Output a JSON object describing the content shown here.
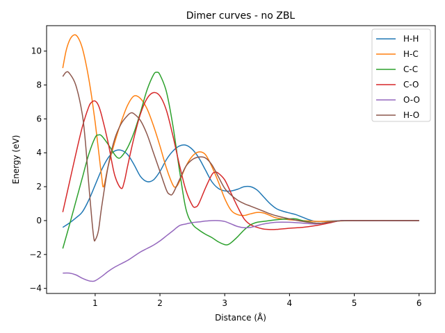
{
  "chart_data": {
    "type": "line",
    "title": "Dimer curves - no ZBL",
    "xlabel": "Distance (Å)",
    "ylabel": "Energy (eV)",
    "xlim": [
      0.25,
      6.25
    ],
    "ylim": [
      -4.3,
      11.5
    ],
    "xticks": [
      1,
      2,
      3,
      4,
      5,
      6
    ],
    "yticks": [
      -4,
      -2,
      0,
      2,
      4,
      6,
      8,
      10
    ],
    "legend_position": "top-right",
    "grid": false,
    "series": [
      {
        "name": "H-H",
        "color": "#1f77b4",
        "points": [
          [
            0.5,
            -0.4
          ],
          [
            0.6,
            -0.15
          ],
          [
            0.7,
            0.15
          ],
          [
            0.8,
            0.5
          ],
          [
            0.9,
            1.2
          ],
          [
            1.0,
            2.1
          ],
          [
            1.1,
            3.0
          ],
          [
            1.2,
            3.7
          ],
          [
            1.3,
            4.1
          ],
          [
            1.4,
            4.15
          ],
          [
            1.5,
            3.9
          ],
          [
            1.6,
            3.3
          ],
          [
            1.7,
            2.6
          ],
          [
            1.8,
            2.3
          ],
          [
            1.9,
            2.4
          ],
          [
            2.0,
            2.9
          ],
          [
            2.1,
            3.6
          ],
          [
            2.2,
            4.1
          ],
          [
            2.3,
            4.4
          ],
          [
            2.4,
            4.45
          ],
          [
            2.5,
            4.2
          ],
          [
            2.6,
            3.7
          ],
          [
            2.7,
            3.0
          ],
          [
            2.8,
            2.3
          ],
          [
            2.9,
            1.9
          ],
          [
            3.0,
            1.75
          ],
          [
            3.1,
            1.75
          ],
          [
            3.2,
            1.85
          ],
          [
            3.3,
            2.0
          ],
          [
            3.4,
            2.0
          ],
          [
            3.5,
            1.8
          ],
          [
            3.6,
            1.4
          ],
          [
            3.7,
            1.0
          ],
          [
            3.8,
            0.7
          ],
          [
            3.9,
            0.55
          ],
          [
            4.0,
            0.45
          ],
          [
            4.1,
            0.35
          ],
          [
            4.2,
            0.2
          ],
          [
            4.3,
            0.05
          ],
          [
            4.4,
            -0.05
          ],
          [
            4.5,
            -0.05
          ],
          [
            4.6,
            -0.03
          ],
          [
            4.8,
            0.0
          ],
          [
            5.0,
            0.0
          ],
          [
            6.0,
            0.0
          ]
        ]
      },
      {
        "name": "H-C",
        "color": "#ff7f0e",
        "points": [
          [
            0.5,
            9.0
          ],
          [
            0.55,
            10.0
          ],
          [
            0.6,
            10.6
          ],
          [
            0.65,
            10.9
          ],
          [
            0.7,
            10.95
          ],
          [
            0.75,
            10.7
          ],
          [
            0.8,
            10.2
          ],
          [
            0.85,
            9.4
          ],
          [
            0.9,
            8.4
          ],
          [
            0.95,
            7.2
          ],
          [
            1.0,
            5.8
          ],
          [
            1.05,
            4.2
          ],
          [
            1.1,
            2.6
          ],
          [
            1.13,
            2.0
          ],
          [
            1.2,
            3.2
          ],
          [
            1.3,
            4.6
          ],
          [
            1.4,
            5.8
          ],
          [
            1.5,
            6.8
          ],
          [
            1.6,
            7.35
          ],
          [
            1.7,
            7.2
          ],
          [
            1.8,
            6.6
          ],
          [
            1.9,
            5.6
          ],
          [
            2.0,
            4.4
          ],
          [
            2.1,
            3.1
          ],
          [
            2.2,
            2.1
          ],
          [
            2.25,
            2.0
          ],
          [
            2.3,
            2.3
          ],
          [
            2.4,
            3.2
          ],
          [
            2.5,
            3.8
          ],
          [
            2.6,
            4.05
          ],
          [
            2.7,
            3.9
          ],
          [
            2.8,
            3.2
          ],
          [
            2.9,
            2.3
          ],
          [
            3.0,
            1.3
          ],
          [
            3.1,
            0.6
          ],
          [
            3.2,
            0.35
          ],
          [
            3.3,
            0.3
          ],
          [
            3.4,
            0.4
          ],
          [
            3.5,
            0.48
          ],
          [
            3.6,
            0.45
          ],
          [
            3.7,
            0.3
          ],
          [
            3.8,
            0.15
          ],
          [
            4.0,
            0.05
          ],
          [
            4.2,
            0.0
          ],
          [
            4.5,
            -0.05
          ],
          [
            5.0,
            0.0
          ],
          [
            6.0,
            0.0
          ]
        ]
      },
      {
        "name": "C-C",
        "color": "#2ca02c",
        "points": [
          [
            0.5,
            -1.65
          ],
          [
            0.6,
            -0.3
          ],
          [
            0.7,
            1.1
          ],
          [
            0.8,
            2.5
          ],
          [
            0.9,
            3.9
          ],
          [
            1.0,
            4.9
          ],
          [
            1.05,
            5.05
          ],
          [
            1.1,
            5.0
          ],
          [
            1.2,
            4.5
          ],
          [
            1.3,
            3.9
          ],
          [
            1.35,
            3.7
          ],
          [
            1.4,
            3.75
          ],
          [
            1.5,
            4.3
          ],
          [
            1.6,
            5.2
          ],
          [
            1.7,
            6.4
          ],
          [
            1.8,
            7.7
          ],
          [
            1.9,
            8.6
          ],
          [
            1.95,
            8.75
          ],
          [
            2.0,
            8.6
          ],
          [
            2.1,
            7.6
          ],
          [
            2.2,
            5.6
          ],
          [
            2.3,
            3.0
          ],
          [
            2.4,
            0.7
          ],
          [
            2.5,
            -0.2
          ],
          [
            2.6,
            -0.55
          ],
          [
            2.7,
            -0.8
          ],
          [
            2.8,
            -1.0
          ],
          [
            2.9,
            -1.25
          ],
          [
            3.0,
            -1.42
          ],
          [
            3.05,
            -1.42
          ],
          [
            3.1,
            -1.3
          ],
          [
            3.2,
            -0.95
          ],
          [
            3.3,
            -0.55
          ],
          [
            3.4,
            -0.25
          ],
          [
            3.5,
            -0.1
          ],
          [
            3.6,
            -0.05
          ],
          [
            3.8,
            0.05
          ],
          [
            4.0,
            0.1
          ],
          [
            4.1,
            0.1
          ],
          [
            4.2,
            0.0
          ],
          [
            4.4,
            -0.15
          ],
          [
            4.5,
            -0.15
          ],
          [
            4.7,
            -0.05
          ],
          [
            4.9,
            0.0
          ],
          [
            6.0,
            0.0
          ]
        ]
      },
      {
        "name": "C-O",
        "color": "#d62728",
        "points": [
          [
            0.5,
            0.5
          ],
          [
            0.6,
            2.2
          ],
          [
            0.7,
            3.9
          ],
          [
            0.8,
            5.5
          ],
          [
            0.9,
            6.7
          ],
          [
            0.95,
            7.0
          ],
          [
            1.0,
            7.05
          ],
          [
            1.05,
            6.8
          ],
          [
            1.1,
            6.2
          ],
          [
            1.2,
            4.6
          ],
          [
            1.3,
            2.7
          ],
          [
            1.4,
            1.9
          ],
          [
            1.45,
            2.3
          ],
          [
            1.5,
            3.2
          ],
          [
            1.6,
            4.9
          ],
          [
            1.7,
            6.3
          ],
          [
            1.8,
            7.2
          ],
          [
            1.9,
            7.55
          ],
          [
            2.0,
            7.35
          ],
          [
            2.1,
            6.5
          ],
          [
            2.2,
            5.0
          ],
          [
            2.3,
            3.3
          ],
          [
            2.4,
            1.8
          ],
          [
            2.5,
            0.9
          ],
          [
            2.55,
            0.8
          ],
          [
            2.6,
            1.0
          ],
          [
            2.7,
            1.9
          ],
          [
            2.8,
            2.7
          ],
          [
            2.85,
            2.85
          ],
          [
            2.9,
            2.8
          ],
          [
            3.0,
            2.4
          ],
          [
            3.1,
            1.6
          ],
          [
            3.2,
            0.8
          ],
          [
            3.3,
            0.1
          ],
          [
            3.4,
            -0.25
          ],
          [
            3.5,
            -0.4
          ],
          [
            3.6,
            -0.5
          ],
          [
            3.7,
            -0.53
          ],
          [
            3.8,
            -0.52
          ],
          [
            4.0,
            -0.45
          ],
          [
            4.2,
            -0.4
          ],
          [
            4.4,
            -0.3
          ],
          [
            4.6,
            -0.15
          ],
          [
            4.8,
            0.0
          ],
          [
            5.0,
            0.0
          ],
          [
            6.0,
            0.0
          ]
        ]
      },
      {
        "name": "O-O",
        "color": "#9467bd",
        "points": [
          [
            0.5,
            -3.1
          ],
          [
            0.6,
            -3.1
          ],
          [
            0.7,
            -3.2
          ],
          [
            0.8,
            -3.4
          ],
          [
            0.9,
            -3.55
          ],
          [
            0.95,
            -3.58
          ],
          [
            1.0,
            -3.55
          ],
          [
            1.1,
            -3.3
          ],
          [
            1.2,
            -3.0
          ],
          [
            1.3,
            -2.75
          ],
          [
            1.4,
            -2.55
          ],
          [
            1.5,
            -2.35
          ],
          [
            1.6,
            -2.1
          ],
          [
            1.7,
            -1.85
          ],
          [
            1.8,
            -1.65
          ],
          [
            1.9,
            -1.45
          ],
          [
            2.0,
            -1.2
          ],
          [
            2.1,
            -0.9
          ],
          [
            2.2,
            -0.6
          ],
          [
            2.3,
            -0.3
          ],
          [
            2.4,
            -0.2
          ],
          [
            2.5,
            -0.12
          ],
          [
            2.6,
            -0.08
          ],
          [
            2.7,
            -0.03
          ],
          [
            2.8,
            0.0
          ],
          [
            2.9,
            0.0
          ],
          [
            3.0,
            -0.05
          ],
          [
            3.1,
            -0.2
          ],
          [
            3.2,
            -0.35
          ],
          [
            3.3,
            -0.42
          ],
          [
            3.4,
            -0.4
          ],
          [
            3.5,
            -0.3
          ],
          [
            3.6,
            -0.2
          ],
          [
            3.8,
            -0.1
          ],
          [
            4.0,
            -0.1
          ],
          [
            4.2,
            -0.15
          ],
          [
            4.4,
            -0.2
          ],
          [
            4.6,
            -0.1
          ],
          [
            4.8,
            0.0
          ],
          [
            5.0,
            0.0
          ],
          [
            6.0,
            0.0
          ]
        ]
      },
      {
        "name": "H-O",
        "color": "#8c564b",
        "points": [
          [
            0.5,
            8.5
          ],
          [
            0.55,
            8.75
          ],
          [
            0.6,
            8.7
          ],
          [
            0.7,
            8.0
          ],
          [
            0.8,
            6.3
          ],
          [
            0.85,
            4.6
          ],
          [
            0.9,
            2.2
          ],
          [
            0.95,
            0.0
          ],
          [
            0.98,
            -1.05
          ],
          [
            1.0,
            -1.15
          ],
          [
            1.05,
            -0.6
          ],
          [
            1.1,
            0.8
          ],
          [
            1.2,
            3.2
          ],
          [
            1.3,
            4.8
          ],
          [
            1.4,
            5.7
          ],
          [
            1.5,
            6.2
          ],
          [
            1.55,
            6.35
          ],
          [
            1.6,
            6.3
          ],
          [
            1.7,
            5.9
          ],
          [
            1.8,
            5.1
          ],
          [
            1.9,
            4.0
          ],
          [
            2.0,
            2.9
          ],
          [
            2.1,
            1.8
          ],
          [
            2.15,
            1.55
          ],
          [
            2.2,
            1.6
          ],
          [
            2.3,
            2.4
          ],
          [
            2.4,
            3.2
          ],
          [
            2.5,
            3.6
          ],
          [
            2.6,
            3.75
          ],
          [
            2.7,
            3.7
          ],
          [
            2.8,
            3.3
          ],
          [
            2.9,
            2.6
          ],
          [
            3.0,
            1.9
          ],
          [
            3.1,
            1.5
          ],
          [
            3.2,
            1.2
          ],
          [
            3.3,
            1.0
          ],
          [
            3.4,
            0.85
          ],
          [
            3.5,
            0.7
          ],
          [
            3.6,
            0.55
          ],
          [
            3.7,
            0.4
          ],
          [
            3.8,
            0.28
          ],
          [
            4.0,
            0.1
          ],
          [
            4.2,
            -0.05
          ],
          [
            4.4,
            -0.15
          ],
          [
            4.5,
            -0.15
          ],
          [
            4.7,
            -0.05
          ],
          [
            4.9,
            0.0
          ],
          [
            6.0,
            0.0
          ]
        ]
      }
    ]
  }
}
